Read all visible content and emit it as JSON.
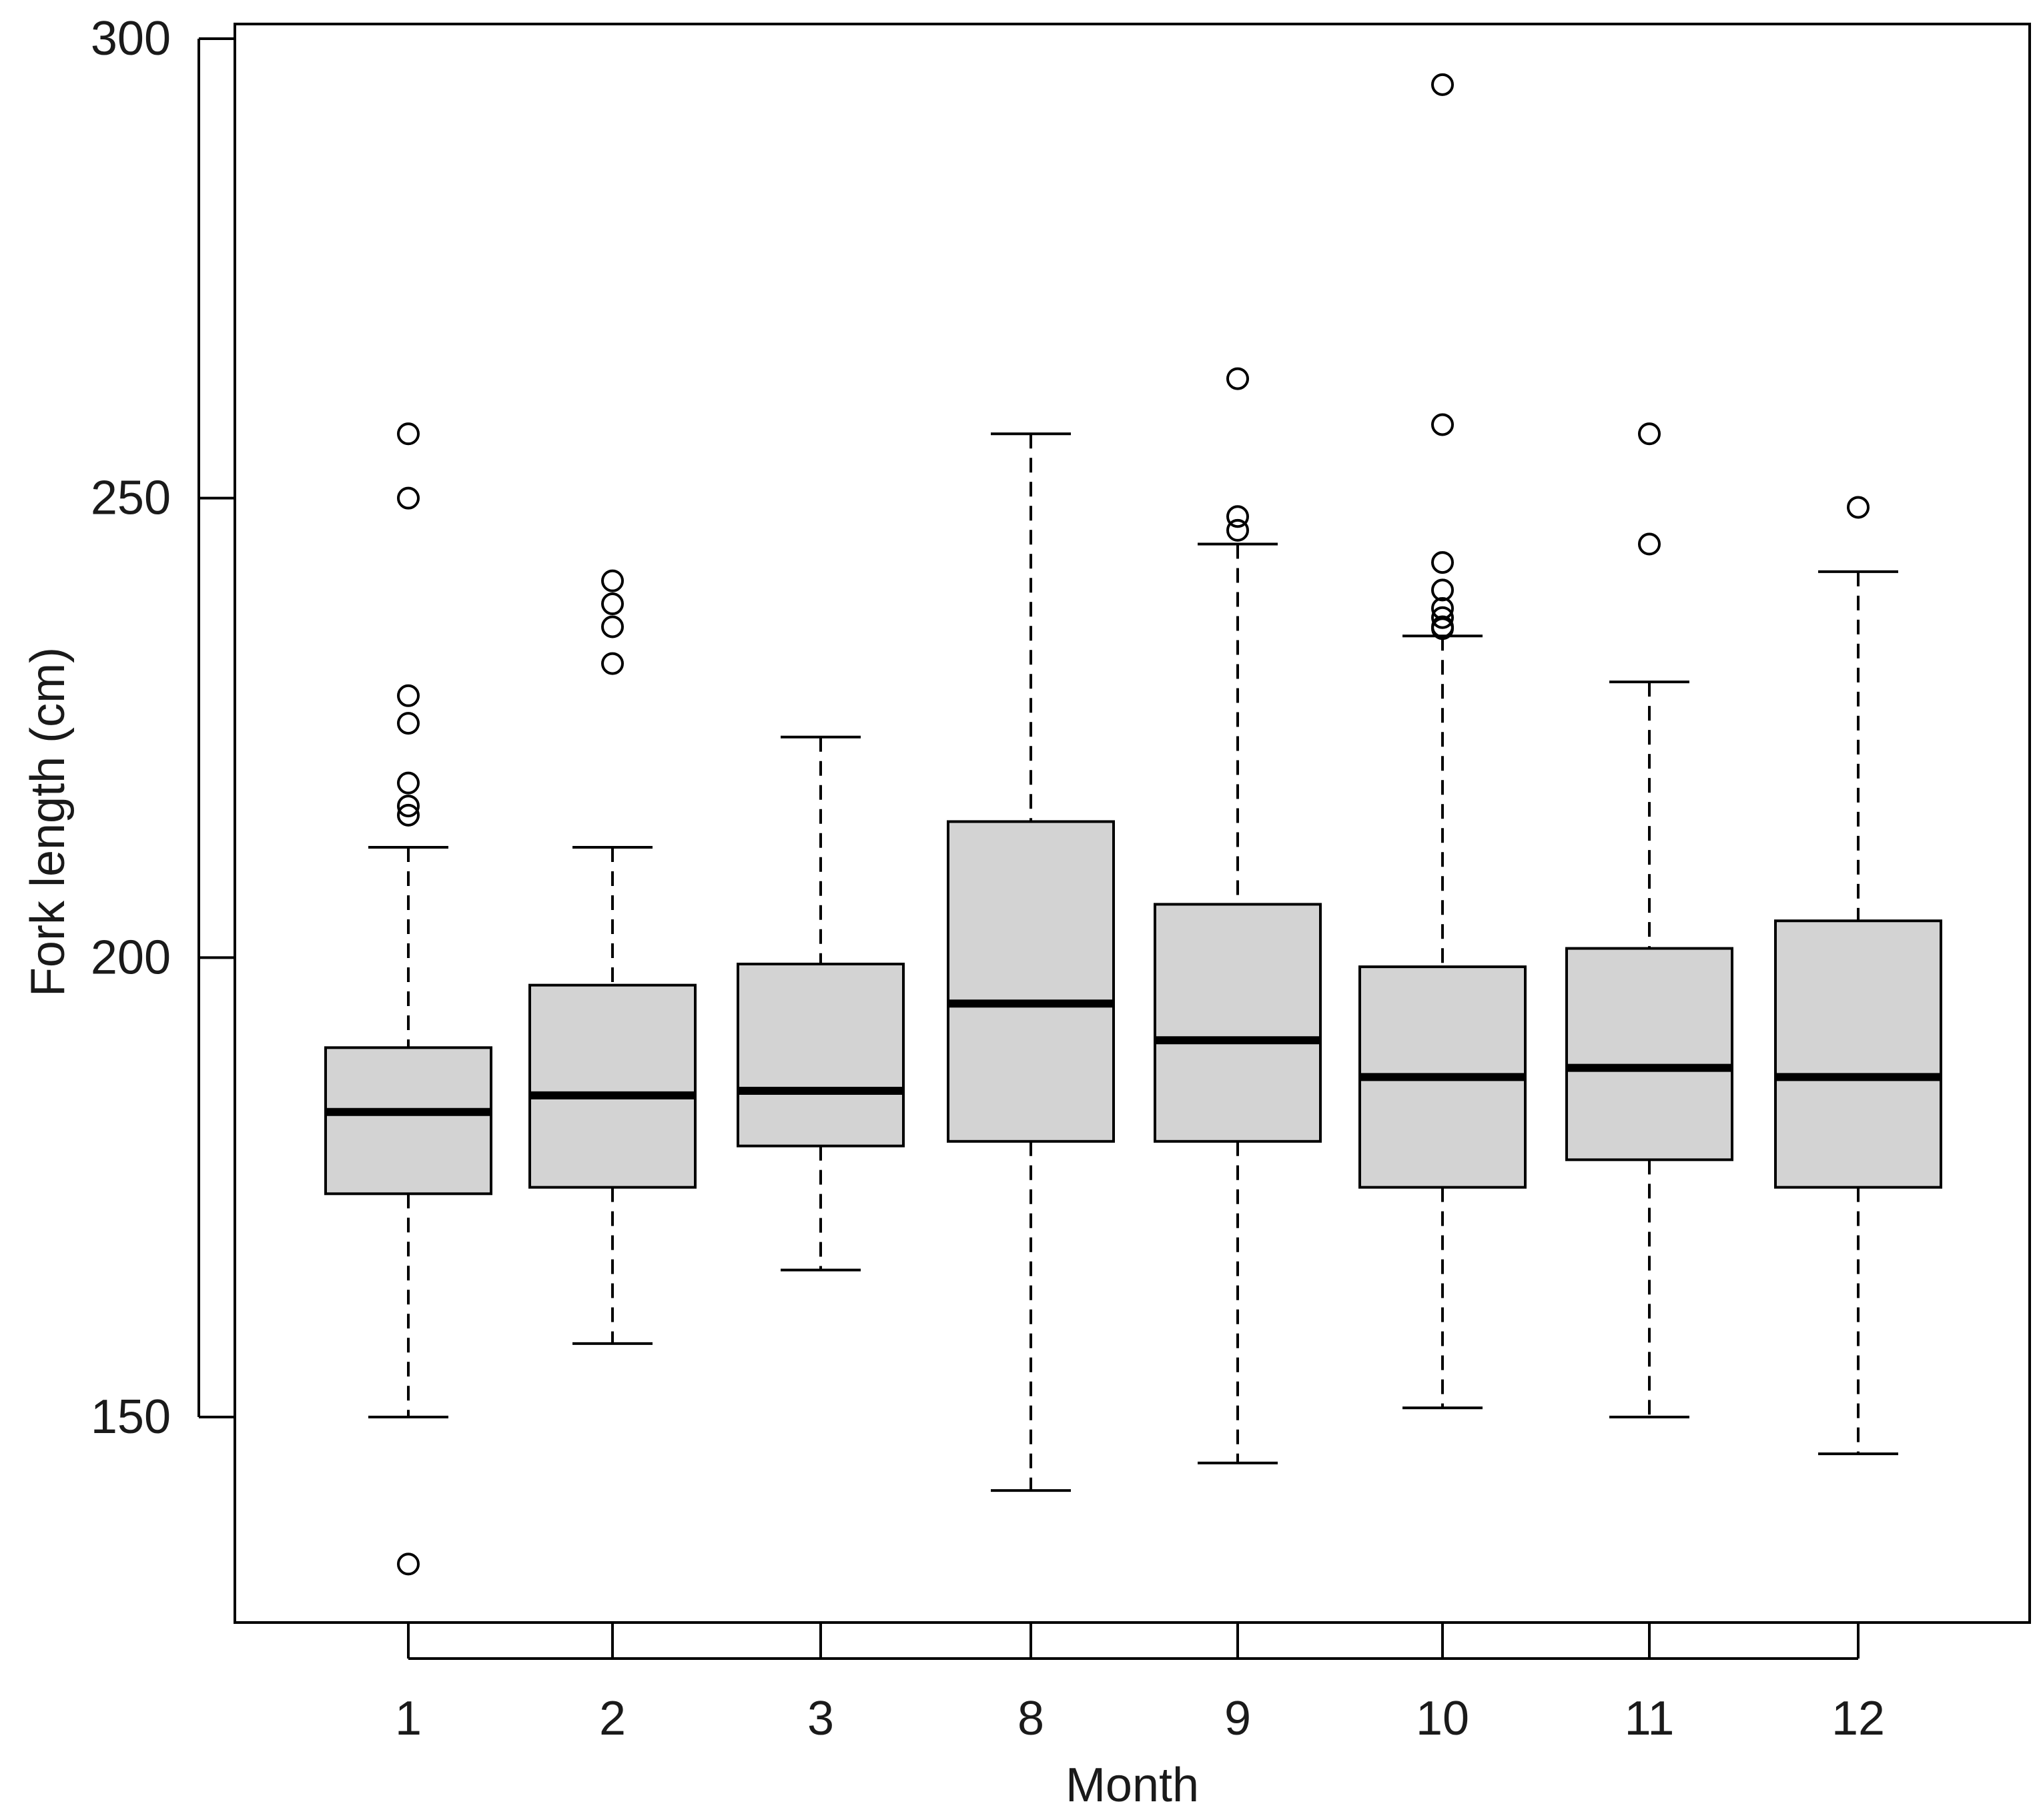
{
  "chart_data": {
    "type": "boxplot",
    "title": "",
    "xlabel": "Month",
    "ylabel": "Fork length (cm)",
    "ylim": [
      127,
      300
    ],
    "yticks": [
      150,
      200,
      250,
      300
    ],
    "ytick_labels": [
      "150",
      "200",
      "250",
      "300"
    ],
    "categories": [
      "1",
      "2",
      "3",
      "8",
      "9",
      "10",
      "11",
      "12"
    ],
    "box_fill": "#d3d3d3",
    "line_color": "#000000",
    "boxes": [
      {
        "category": "1",
        "whisker_low": 150,
        "q1": 174.3,
        "median": 183.2,
        "q3": 190.2,
        "whisker_high": 212,
        "outliers": [
          257,
          250,
          228.5,
          225.5,
          219,
          216.5,
          215.5,
          134
        ]
      },
      {
        "category": "2",
        "whisker_low": 158,
        "q1": 175,
        "median": 185,
        "q3": 197,
        "whisker_high": 212,
        "outliers": [
          241,
          238.5,
          236,
          232
        ]
      },
      {
        "category": "3",
        "whisker_low": 166,
        "q1": 179.5,
        "median": 185.5,
        "q3": 199.3,
        "whisker_high": 224,
        "outliers": []
      },
      {
        "category": "8",
        "whisker_low": 142,
        "q1": 180,
        "median": 195,
        "q3": 214.8,
        "whisker_high": 257,
        "outliers": []
      },
      {
        "category": "9",
        "whisker_low": 145,
        "q1": 180,
        "median": 191,
        "q3": 205.8,
        "whisker_high": 245,
        "outliers": [
          263,
          248,
          246.5
        ]
      },
      {
        "category": "10",
        "whisker_low": 151,
        "q1": 175,
        "median": 187,
        "q3": 199,
        "whisker_high": 235,
        "outliers": [
          295,
          258,
          243,
          240,
          238,
          237,
          236,
          235.8
        ]
      },
      {
        "category": "11",
        "whisker_low": 150,
        "q1": 178,
        "median": 188,
        "q3": 201,
        "whisker_high": 230,
        "outliers": [
          257,
          245
        ]
      },
      {
        "category": "12",
        "whisker_low": 146,
        "q1": 175,
        "median": 187,
        "q3": 204,
        "whisker_high": 242,
        "outliers": [
          249
        ]
      }
    ]
  }
}
